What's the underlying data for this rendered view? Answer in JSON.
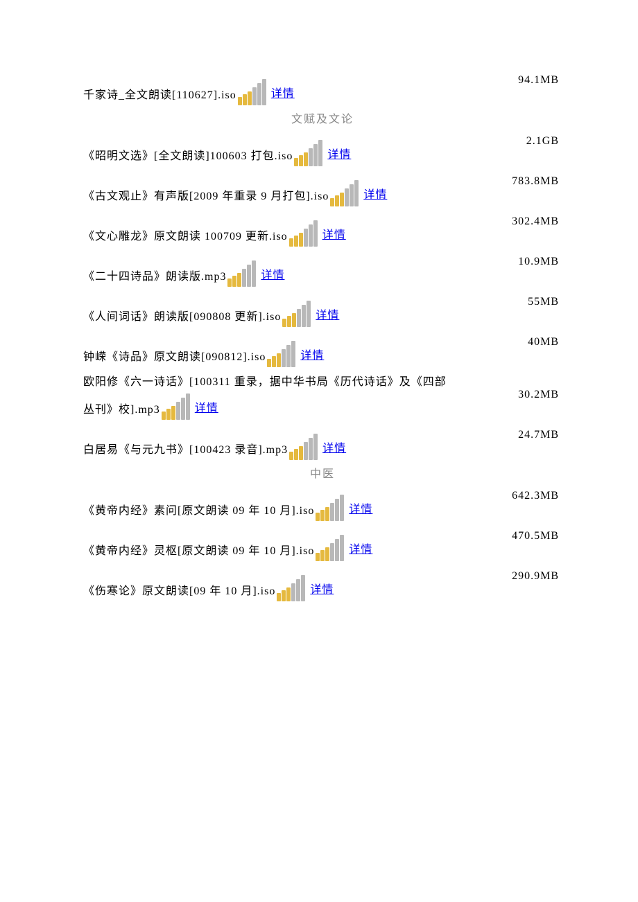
{
  "link_label": "详情",
  "icon_colors": {
    "gold": "#e5b93e",
    "gray": "#b8b8b8"
  },
  "icon_bar_heights": [
    12,
    16,
    20,
    26,
    32,
    38
  ],
  "sections": [
    {
      "heading": null,
      "items": [
        {
          "name": "千家诗_全文朗读[110627].iso",
          "size": "94.1MB"
        }
      ]
    },
    {
      "heading": "文赋及文论",
      "items": [
        {
          "name": "《昭明文选》[全文朗读]100603 打包.iso",
          "size": "2.1GB"
        },
        {
          "name": "《古文观止》有声版[2009 年重录 9 月打包].iso",
          "size": "783.8MB"
        },
        {
          "name": "《文心雕龙》原文朗读 100709 更新.iso",
          "size": "302.4MB"
        },
        {
          "name": "《二十四诗品》朗读版.mp3",
          "size": "10.9MB"
        },
        {
          "name": "《人间词话》朗读版[090808 更新].iso",
          "size": "55MB"
        },
        {
          "name": "钟嵘《诗品》原文朗读[090812].iso",
          "size": "40MB"
        },
        {
          "name": "欧阳修《六一诗话》[100311 重录，据中华书局《历代诗话》及《四部丛刊》校].mp3",
          "size": "30.2MB",
          "multiline": true
        },
        {
          "name": "白居易《与元九书》[100423 录音].mp3",
          "size": "24.7MB"
        }
      ]
    },
    {
      "heading": "中医",
      "items": [
        {
          "name": "《黄帝内经》素问[原文朗读 09 年 10 月].iso",
          "size": "642.3MB"
        },
        {
          "name": "《黄帝内经》灵枢[原文朗读 09 年 10 月].iso",
          "size": "470.5MB"
        },
        {
          "name": "《伤寒论》原文朗读[09 年 10 月].iso",
          "size": "290.9MB"
        }
      ]
    }
  ]
}
